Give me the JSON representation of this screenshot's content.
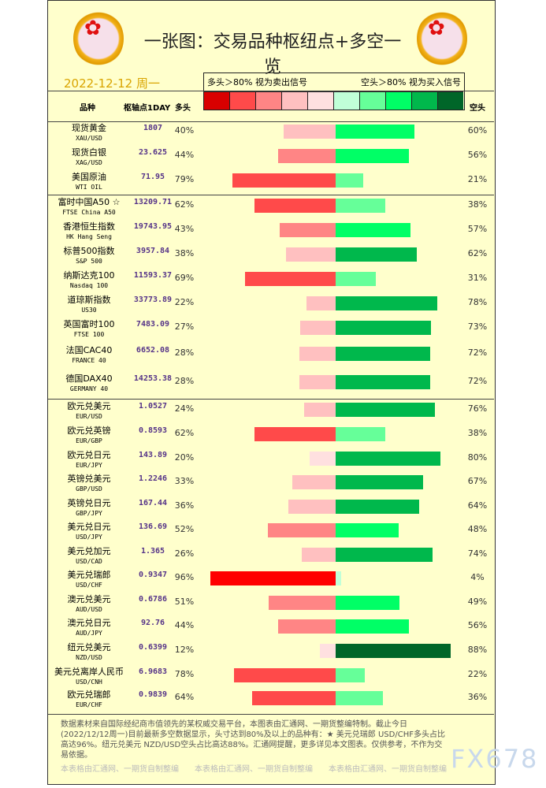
{
  "title": "一张图：交易品种枢纽点+多空一览",
  "date": "2022-12-12 周一",
  "legend": {
    "long_note": "多头＞80% 视为卖出信号",
    "short_note": "空头＞80% 视为买入信号",
    "colors": [
      "#d90000",
      "#ff4a4a",
      "#ff8585",
      "#ffc0c0",
      "#ffe0e0",
      "#c0ffd8",
      "#66ff99",
      "#00ff66",
      "#00b84c",
      "#006629"
    ]
  },
  "headers": {
    "name": "品种",
    "pivot": "枢轴点1DAY",
    "long": "多头",
    "short": "空头"
  },
  "rows": [
    {
      "cn": "现货黄金",
      "en": "XAU/USD",
      "pivot": "1807",
      "long": "40%",
      "short": "60%",
      "l": 40,
      "s": 60
    },
    {
      "cn": "现货白银",
      "en": "XAG/USD",
      "pivot": "23.625",
      "long": "44%",
      "short": "56%",
      "l": 44,
      "s": 56
    },
    {
      "cn": "美国原油",
      "en": "WTI OIL",
      "pivot": "71.95",
      "long": "79%",
      "short": "21%",
      "l": 79,
      "s": 21
    },
    {
      "cn": "富时中国A50 ☆",
      "en": "FTSE China A50",
      "pivot": "13209.71",
      "long": "62%",
      "short": "38%",
      "l": 62,
      "s": 38
    },
    {
      "cn": "香港恒生指数",
      "en": "HK Hang Seng",
      "pivot": "19743.95",
      "long": "43%",
      "short": "57%",
      "l": 43,
      "s": 57
    },
    {
      "cn": "标普500指数",
      "en": "S&P 500",
      "pivot": "3957.84",
      "long": "38%",
      "short": "62%",
      "l": 38,
      "s": 62
    },
    {
      "cn": "纳斯达克100",
      "en": "Nasdaq 100",
      "pivot": "11593.37",
      "long": "69%",
      "short": "31%",
      "l": 69,
      "s": 31
    },
    {
      "cn": "道琼斯指数",
      "en": "US30",
      "pivot": "33773.89",
      "long": "22%",
      "short": "78%",
      "l": 22,
      "s": 78
    },
    {
      "cn": "英国富时100",
      "en": "FTSE 100",
      "pivot": "7483.09",
      "long": "27%",
      "short": "73%",
      "l": 27,
      "s": 73
    },
    {
      "cn": "法国CAC40",
      "en": "FRANCE 40",
      "pivot": "6652.08",
      "long": "28%",
      "short": "72%",
      "l": 28,
      "s": 72
    },
    {
      "cn": "德国DAX40",
      "en": "GERMANY 40",
      "pivot": "14253.38",
      "long": "28%",
      "short": "72%",
      "l": 28,
      "s": 72
    },
    {
      "cn": "欧元兑美元",
      "en": "EUR/USD",
      "pivot": "1.0527",
      "long": "24%",
      "short": "76%",
      "l": 24,
      "s": 76
    },
    {
      "cn": "欧元兑英镑",
      "en": "EUR/GBP",
      "pivot": "0.8593",
      "long": "62%",
      "short": "38%",
      "l": 62,
      "s": 38
    },
    {
      "cn": "欧元兑日元",
      "en": "EUR/JPY",
      "pivot": "143.89",
      "long": "20%",
      "short": "80%",
      "l": 20,
      "s": 80
    },
    {
      "cn": "英镑兑美元",
      "en": "GBP/USD",
      "pivot": "1.2246",
      "long": "33%",
      "short": "67%",
      "l": 33,
      "s": 67
    },
    {
      "cn": "英镑兑日元",
      "en": "GBP/JPY",
      "pivot": "167.44",
      "long": "36%",
      "short": "64%",
      "l": 36,
      "s": 64
    },
    {
      "cn": "美元兑日元",
      "en": "USD/JPY",
      "pivot": "136.69",
      "long": "52%",
      "short": "48%",
      "l": 52,
      "s": 48
    },
    {
      "cn": "美元兑加元",
      "en": "USD/CAD",
      "pivot": "1.365",
      "long": "26%",
      "short": "74%",
      "l": 26,
      "s": 74
    },
    {
      "cn": "美元兑瑞郎",
      "en": "USD/CHF",
      "pivot": "0.9347",
      "long": "96%",
      "short": "4%",
      "l": 96,
      "s": 4
    },
    {
      "cn": "澳元兑美元",
      "en": "AUD/USD",
      "pivot": "0.6786",
      "long": "51%",
      "short": "49%",
      "l": 51,
      "s": 49
    },
    {
      "cn": "澳元兑日元",
      "en": "AUD/JPY",
      "pivot": "92.76",
      "long": "44%",
      "short": "56%",
      "l": 44,
      "s": 56
    },
    {
      "cn": "纽元兑美元",
      "en": "NZD/USD",
      "pivot": "0.6399",
      "long": "12%",
      "short": "88%",
      "l": 12,
      "s": 88
    },
    {
      "cn": "美元兑离岸人民币",
      "en": "USD/CNH",
      "pivot": "6.9683",
      "long": "78%",
      "short": "22%",
      "l": 78,
      "s": 22
    },
    {
      "cn": "欧元兑瑞郎",
      "en": "EUR/CHF",
      "pivot": "0.9839",
      "long": "64%",
      "short": "36%",
      "l": 64,
      "s": 36
    }
  ],
  "footer": "数据素材来自国际经纪商市值领先的某权威交易平台，本图表由汇通网、一期货整编特制。截止今日(2022/12/12周一)目前最新多空数据显示，头寸达到80%及以上的品种有：★ 美元兑瑞郎 USD/CHF多头占比高达96%。纽元兑美元 NZD/USD空头占比高达88%。汇通网提醒，更多详见本文图表。仅供参考，不作为交易依据。",
  "watermark": "本表格由汇通网、一期货自制整编",
  "brand": "FX678"
}
